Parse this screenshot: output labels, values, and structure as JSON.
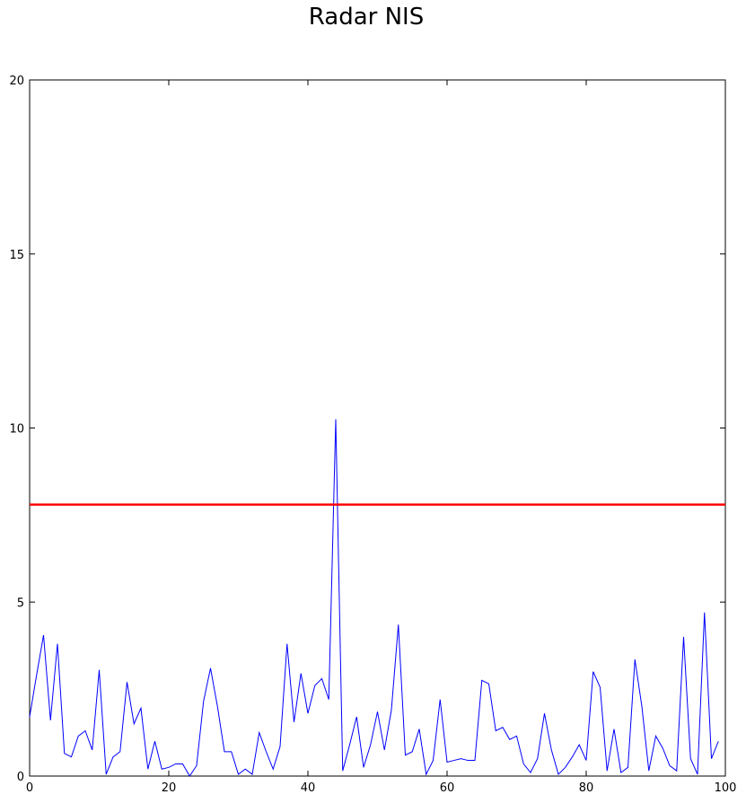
{
  "chart_data": {
    "type": "line",
    "title": "Radar NIS",
    "xlabel": "",
    "ylabel": "",
    "xlim": [
      0,
      100
    ],
    "ylim": [
      0,
      20
    ],
    "x_ticks": [
      0,
      20,
      40,
      60,
      80,
      100
    ],
    "y_ticks": [
      0,
      5,
      10,
      15,
      20
    ],
    "grid": false,
    "series": [
      {
        "color": "#0000ff",
        "x": [
          0,
          1,
          2,
          3,
          4,
          5,
          6,
          7,
          8,
          9,
          10,
          11,
          12,
          13,
          14,
          15,
          16,
          17,
          18,
          19,
          20,
          21,
          22,
          23,
          24,
          25,
          26,
          27,
          28,
          29,
          30,
          31,
          32,
          33,
          34,
          35,
          36,
          37,
          38,
          39,
          40,
          41,
          42,
          43,
          44,
          45,
          46,
          47,
          48,
          49,
          50,
          51,
          52,
          53,
          54,
          55,
          56,
          57,
          58,
          59,
          60,
          61,
          62,
          63,
          64,
          65,
          66,
          67,
          68,
          69,
          70,
          71,
          72,
          73,
          74,
          75,
          76,
          77,
          78,
          79,
          80,
          81,
          82,
          83,
          84,
          85,
          86,
          87,
          88,
          89,
          90,
          91,
          92,
          93,
          94,
          95,
          96,
          97,
          98,
          99
        ],
        "values": [
          1.7,
          2.9,
          4.05,
          1.6,
          3.8,
          0.65,
          0.55,
          1.15,
          1.3,
          0.75,
          3.05,
          0.05,
          0.55,
          0.7,
          2.7,
          1.5,
          1.95,
          0.2,
          1.0,
          0.2,
          0.25,
          0.35,
          0.35,
          0.0,
          0.3,
          2.15,
          3.1,
          2.0,
          0.7,
          0.7,
          0.05,
          0.2,
          0.05,
          1.25,
          0.7,
          0.2,
          0.85,
          3.8,
          1.55,
          2.95,
          1.8,
          2.6,
          2.8,
          2.2,
          10.25,
          0.15,
          0.9,
          1.7,
          0.25,
          0.9,
          1.85,
          0.75,
          1.9,
          4.35,
          0.6,
          0.7,
          1.35,
          0.05,
          0.45,
          2.2,
          0.4,
          0.45,
          0.5,
          0.45,
          0.45,
          2.75,
          2.65,
          1.3,
          1.4,
          1.05,
          1.15,
          0.35,
          0.1,
          0.5,
          1.8,
          0.75,
          0.05,
          0.25,
          0.55,
          0.9,
          0.45,
          3.0,
          2.55,
          0.15,
          1.35,
          0.1,
          0.25,
          3.35,
          2.0,
          0.15,
          1.15,
          0.8,
          0.3,
          0.15,
          4.0,
          0.5,
          0.05,
          4.7,
          0.5,
          1.0
        ]
      },
      {
        "color": "#ff0000",
        "x": [
          0,
          100
        ],
        "values": [
          7.8,
          7.8
        ]
      }
    ]
  }
}
